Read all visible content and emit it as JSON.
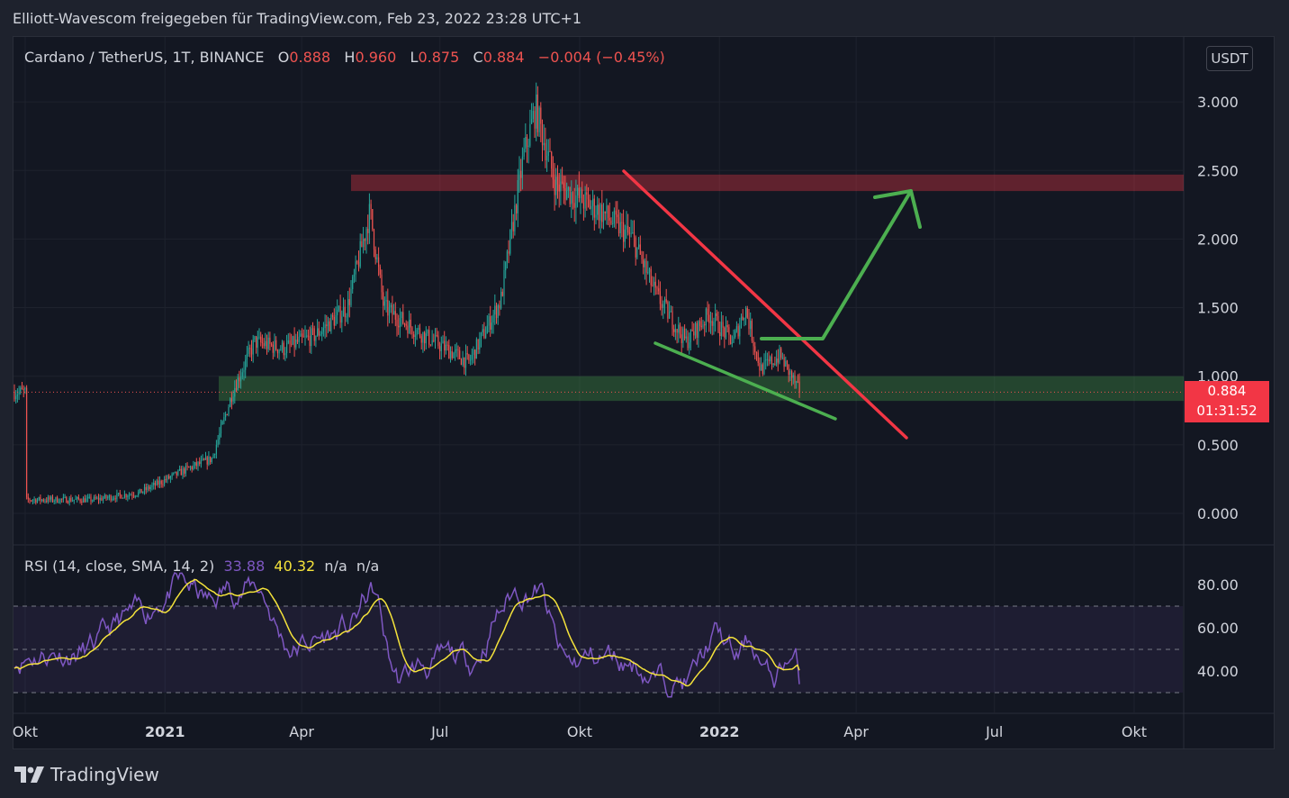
{
  "caption": "Elliott-Wavescom freigegeben für TradingView.com, Feb 23, 2022 23:28 UTC+1",
  "legend": {
    "symbol": "Cardano / TetherUS, 1T, BINANCE",
    "o_label": "O",
    "o_value": "0.888",
    "h_label": "H",
    "h_value": "0.960",
    "l_label": "L",
    "l_value": "0.875",
    "c_label": "C",
    "c_value": "0.884",
    "change": "−0.004 (−0.45%)"
  },
  "currency_badge": "USDT",
  "last_price": "0.884",
  "countdown": "01:31:52",
  "rsi_legend": {
    "name": "RSI (14, close, SMA, 14, 2)",
    "rsi_value": "33.88",
    "sma_value": "40.32",
    "na1": "n/a",
    "na2": "n/a"
  },
  "brand": "TradingView",
  "colors": {
    "up": "#26a69a",
    "down": "#ef5350",
    "rsi_line": "#7e57c2",
    "rsi_sma": "#f5e33b",
    "resistance_zone": "#f23645",
    "support_zone": "#4caf50",
    "trendline_red": "#f23645",
    "trendline_green": "#4caf50"
  },
  "chart_data": [
    {
      "type": "candlestick",
      "title": "Cardano / TetherUS, 1T, BINANCE",
      "x_axis_labels": [
        "Okt",
        "2021",
        "Apr",
        "Jul",
        "Okt",
        "2022",
        "Apr",
        "Jul",
        "Okt"
      ],
      "y_axis_labels": [
        "3.000",
        "2.500",
        "2.000",
        "1.500",
        "1.000",
        "0.500",
        "0.000"
      ],
      "ylim": [
        0,
        3.1
      ],
      "price_path_approx": [
        {
          "x": "2020-10-01",
          "y": 0.1
        },
        {
          "x": "2020-11-15",
          "y": 0.1
        },
        {
          "x": "2020-12-15",
          "y": 0.15
        },
        {
          "x": "2021-01-15",
          "y": 0.32
        },
        {
          "x": "2021-02-01",
          "y": 0.4
        },
        {
          "x": "2021-02-15",
          "y": 0.9
        },
        {
          "x": "2021-03-01",
          "y": 1.25
        },
        {
          "x": "2021-03-20",
          "y": 1.2
        },
        {
          "x": "2021-04-10",
          "y": 1.3
        },
        {
          "x": "2021-05-01",
          "y": 1.5
        },
        {
          "x": "2021-05-16",
          "y": 2.2
        },
        {
          "x": "2021-05-25",
          "y": 1.5
        },
        {
          "x": "2021-06-20",
          "y": 1.3
        },
        {
          "x": "2021-07-20",
          "y": 1.1
        },
        {
          "x": "2021-08-10",
          "y": 1.55
        },
        {
          "x": "2021-08-25",
          "y": 2.6
        },
        {
          "x": "2021-09-02",
          "y": 2.95
        },
        {
          "x": "2021-09-15",
          "y": 2.4
        },
        {
          "x": "2021-10-15",
          "y": 2.2
        },
        {
          "x": "2021-11-05",
          "y": 2.0
        },
        {
          "x": "2021-11-20",
          "y": 1.6
        },
        {
          "x": "2021-12-10",
          "y": 1.25
        },
        {
          "x": "2021-12-25",
          "y": 1.45
        },
        {
          "x": "2022-01-10",
          "y": 1.25
        },
        {
          "x": "2022-01-18",
          "y": 1.5
        },
        {
          "x": "2022-01-28",
          "y": 1.05
        },
        {
          "x": "2022-02-10",
          "y": 1.15
        },
        {
          "x": "2022-02-23",
          "y": 0.884
        }
      ],
      "last_close": 0.884,
      "zones": [
        {
          "kind": "resistance",
          "from": 2.35,
          "to": 2.47
        },
        {
          "kind": "support",
          "from": 0.82,
          "to": 1.0
        }
      ],
      "annotations": [
        {
          "kind": "descending-trendline",
          "color": "red"
        },
        {
          "kind": "support-trendline",
          "color": "green"
        },
        {
          "kind": "breakout-arrow",
          "color": "green"
        }
      ]
    },
    {
      "type": "line",
      "title": "RSI (14, close, SMA, 14, 2)",
      "y_axis_labels": [
        "80.00",
        "60.00",
        "40.00"
      ],
      "ylim": [
        25,
        92
      ],
      "bands": [
        70,
        50,
        30
      ],
      "series": [
        {
          "name": "RSI",
          "last": 33.88
        },
        {
          "name": "SMA",
          "last": 40.32
        }
      ]
    }
  ]
}
